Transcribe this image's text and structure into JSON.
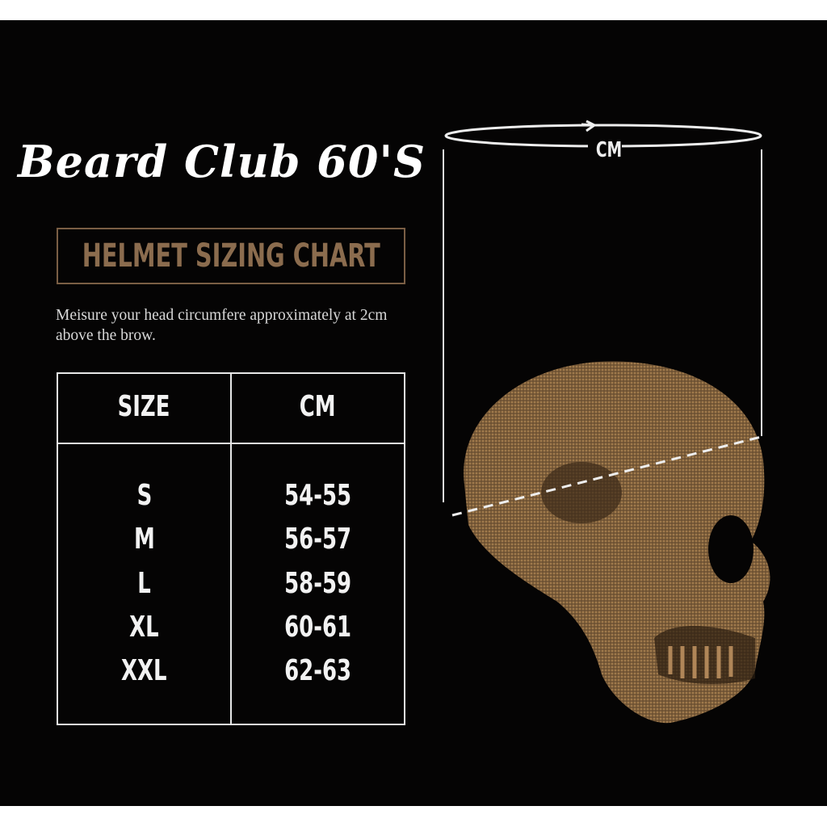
{
  "brand": "Beard Club 60'S",
  "title": "HELMET SIZING CHART",
  "description": "Meisure your head circumfere approximately at 2cm above the brow.",
  "table": {
    "headers": [
      "SIZE",
      "CM"
    ],
    "rows": [
      [
        "S",
        "54-55"
      ],
      [
        "M",
        "56-57"
      ],
      [
        "L",
        "58-59"
      ],
      [
        "XL",
        "60-61"
      ],
      [
        "XXL",
        "62-63"
      ]
    ]
  },
  "diagram": {
    "measure_label": "CM",
    "skull_color": "#8a6a44",
    "accent_color": "#8b6c4e"
  }
}
